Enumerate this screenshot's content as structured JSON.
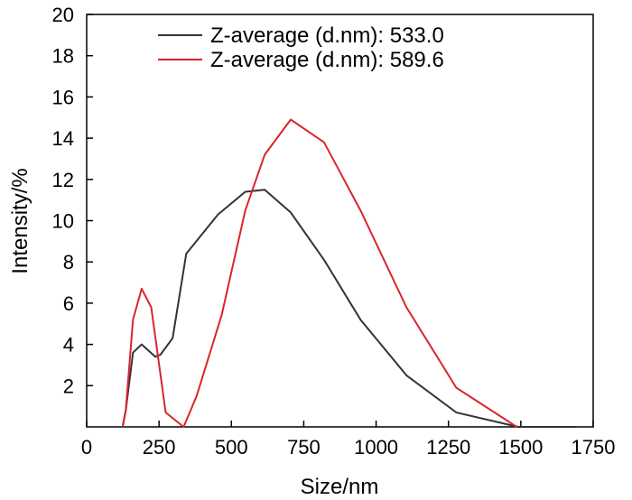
{
  "chart_data": {
    "type": "line",
    "title": "",
    "xlabel": "Size/nm",
    "ylabel": "Intensity/%",
    "xlim": [
      0,
      1750
    ],
    "ylim": [
      0,
      20
    ],
    "xticks": [
      0,
      250,
      500,
      750,
      1000,
      1250,
      1500,
      1750
    ],
    "yticks": [
      2,
      4,
      6,
      8,
      10,
      12,
      14,
      16,
      18,
      20
    ],
    "grid": false,
    "legend_position": "top",
    "series": [
      {
        "name": "Z-average (d.nm): 533.0",
        "color": "#333333",
        "x": [
          124,
          135,
          160,
          190,
          237,
          255,
          297,
          344,
          454,
          548,
          615,
          705,
          820,
          946,
          1105,
          1277,
          1491,
          1691
        ],
        "y": [
          0,
          0.8,
          3.6,
          4.0,
          3.4,
          3.5,
          4.3,
          8.4,
          10.3,
          11.4,
          11.5,
          10.4,
          8.1,
          5.2,
          2.5,
          0.7,
          0.0,
          0.0
        ]
      },
      {
        "name": "Z-average (d.nm): 589.6",
        "color": "#d9252c",
        "x": [
          124,
          135,
          160,
          190,
          223,
          273,
          335,
          380,
          466,
          548,
          615,
          705,
          820,
          946,
          1105,
          1277,
          1486
        ],
        "y": [
          0,
          0.8,
          5.2,
          6.7,
          5.8,
          0.7,
          0.0,
          1.5,
          5.4,
          10.5,
          13.2,
          14.9,
          13.8,
          10.5,
          5.8,
          1.9,
          0.0
        ]
      }
    ]
  }
}
